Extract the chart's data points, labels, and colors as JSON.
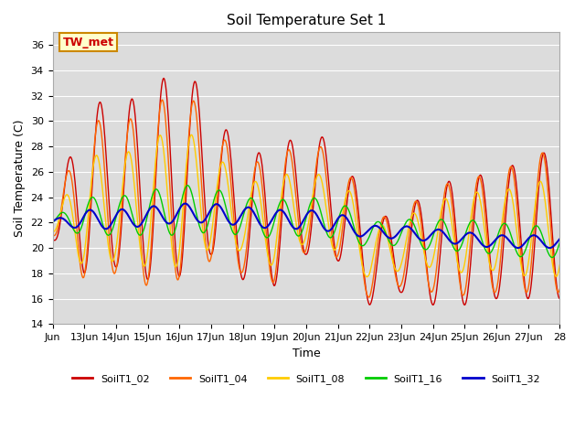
{
  "title": "Soil Temperature Set 1",
  "xlabel": "Time",
  "ylabel": "Soil Temperature (C)",
  "ylim": [
    14,
    37
  ],
  "yticks": [
    14,
    16,
    18,
    20,
    22,
    24,
    26,
    28,
    30,
    32,
    34,
    36
  ],
  "bg_color": "#dcdcdc",
  "annotation_text": "TW_met",
  "annotation_bg": "#ffffcc",
  "annotation_fg": "#cc0000",
  "annotation_border": "#cc8800",
  "lines": {
    "SoilT1_02": {
      "color": "#cc0000",
      "lw": 1.0
    },
    "SoilT1_04": {
      "color": "#ff6600",
      "lw": 1.0
    },
    "SoilT1_08": {
      "color": "#ffcc00",
      "lw": 1.0
    },
    "SoilT1_16": {
      "color": "#00cc00",
      "lw": 1.0
    },
    "SoilT1_32": {
      "color": "#0000cc",
      "lw": 1.5
    }
  },
  "xtick_labels": [
    "Jun",
    "13Jun",
    "14Jun",
    "15Jun",
    "16Jun",
    "17Jun",
    "18Jun",
    "19Jun",
    "20Jun",
    "21Jun",
    "22Jun",
    "23Jun",
    "24Jun",
    "25Jun",
    "26Jun",
    "27Jun",
    "28"
  ],
  "xtick_positions": [
    0,
    1,
    2,
    3,
    4,
    5,
    6,
    7,
    8,
    9,
    10,
    11,
    12,
    13,
    14,
    15,
    16
  ]
}
